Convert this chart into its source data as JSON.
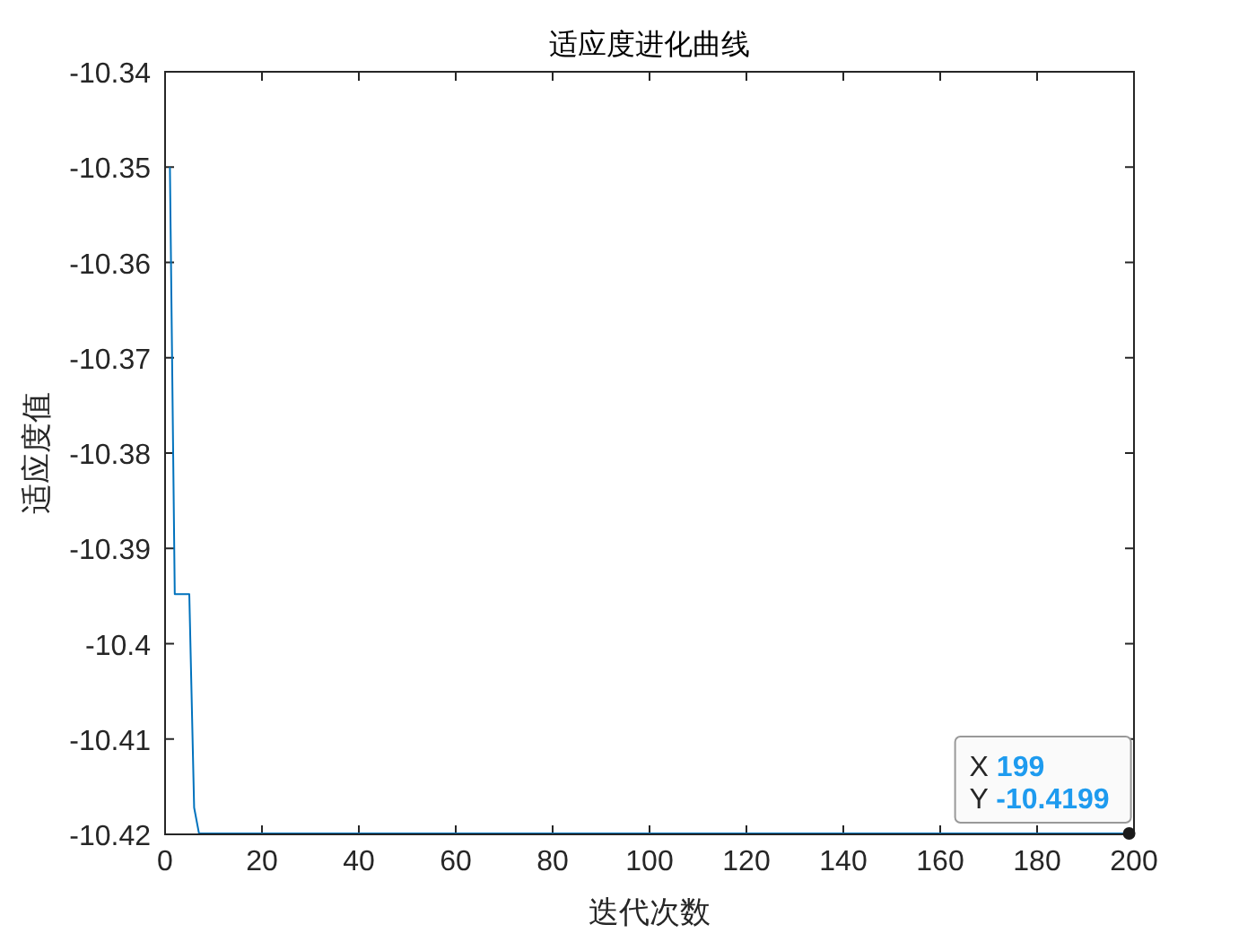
{
  "chart_data": {
    "type": "line",
    "title": "适应度进化曲线",
    "xlabel": "迭代次数",
    "ylabel": "适应度值",
    "x": [
      1,
      2,
      5,
      6,
      7,
      199
    ],
    "series": [
      {
        "color": "#0072bd",
        "values": [
          -10.35,
          -10.3948,
          -10.3948,
          -10.4172,
          -10.4199,
          -10.4199
        ]
      }
    ],
    "xlim": [
      0,
      200
    ],
    "xticks": [
      0,
      20,
      40,
      60,
      80,
      100,
      120,
      140,
      160,
      180,
      200
    ],
    "ylim": [
      -10.42,
      -10.34
    ],
    "yticks": [
      -10.42,
      -10.41,
      -10.4,
      -10.39,
      -10.38,
      -10.37,
      -10.36,
      -10.35,
      -10.34
    ],
    "grid": false,
    "annotations": [
      {
        "text": "X 199\nY -10.4199",
        "x": 199,
        "y": -10.4199
      }
    ]
  }
}
